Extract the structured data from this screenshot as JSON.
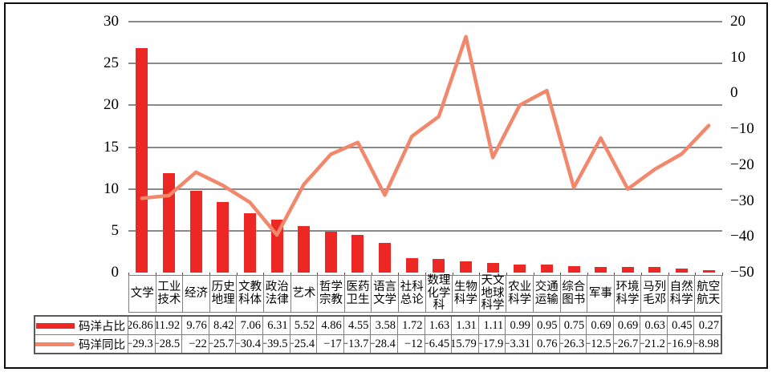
{
  "chart_data": {
    "type": "combo",
    "categories": [
      "文学",
      "工业技术",
      "经济",
      "历史地理",
      "文教科体",
      "政治法律",
      "艺术",
      "哲学宗教",
      "医药卫生",
      "语言文学",
      "社科总论",
      "数理化学科",
      "生物科学",
      "天文地球科学",
      "农业科学",
      "交通运输",
      "综合图书",
      "军事",
      "环境科学",
      "马列毛邓",
      "自然科学",
      "航空航天"
    ],
    "series": [
      {
        "name": "码洋占比",
        "type": "bar",
        "axis": "left",
        "color": "#ed2824",
        "values": [
          26.86,
          11.92,
          9.76,
          8.42,
          7.06,
          6.31,
          5.52,
          4.86,
          4.55,
          3.58,
          1.72,
          1.63,
          1.31,
          1.11,
          0.99,
          0.95,
          0.75,
          0.69,
          0.69,
          0.63,
          0.45,
          0.27
        ]
      },
      {
        "name": "码洋同比",
        "type": "line",
        "axis": "right",
        "color": "#f2876b",
        "values": [
          -29.3,
          -28.5,
          -22,
          -25.7,
          -30.4,
          -39.5,
          -25.4,
          -17,
          -13.7,
          -28.4,
          -12,
          -6.45,
          15.79,
          -17.9,
          -3.31,
          0.76,
          -26.3,
          -12.5,
          -26.7,
          -21.2,
          -16.9,
          -8.98
        ]
      }
    ],
    "left_axis": {
      "min": 0,
      "max": 30,
      "step": 5,
      "ticks": [
        30,
        25,
        20,
        15,
        10,
        5,
        0
      ]
    },
    "right_axis": {
      "min": -50,
      "max": 20,
      "step": 10,
      "ticks": [
        20,
        10,
        0,
        -10,
        -20,
        -30,
        -40,
        -50
      ]
    },
    "grid": true,
    "legend_position": "data-table-left"
  },
  "colors": {
    "bar": "#ed2824",
    "line": "#f2876b",
    "gridline": "#8a8a8a",
    "cell_border": "#7f7f7f",
    "table_outer_border": "#5a5a5a",
    "frame_border": "#0d0d0d",
    "background": "#ffffff",
    "text": "#000000"
  }
}
